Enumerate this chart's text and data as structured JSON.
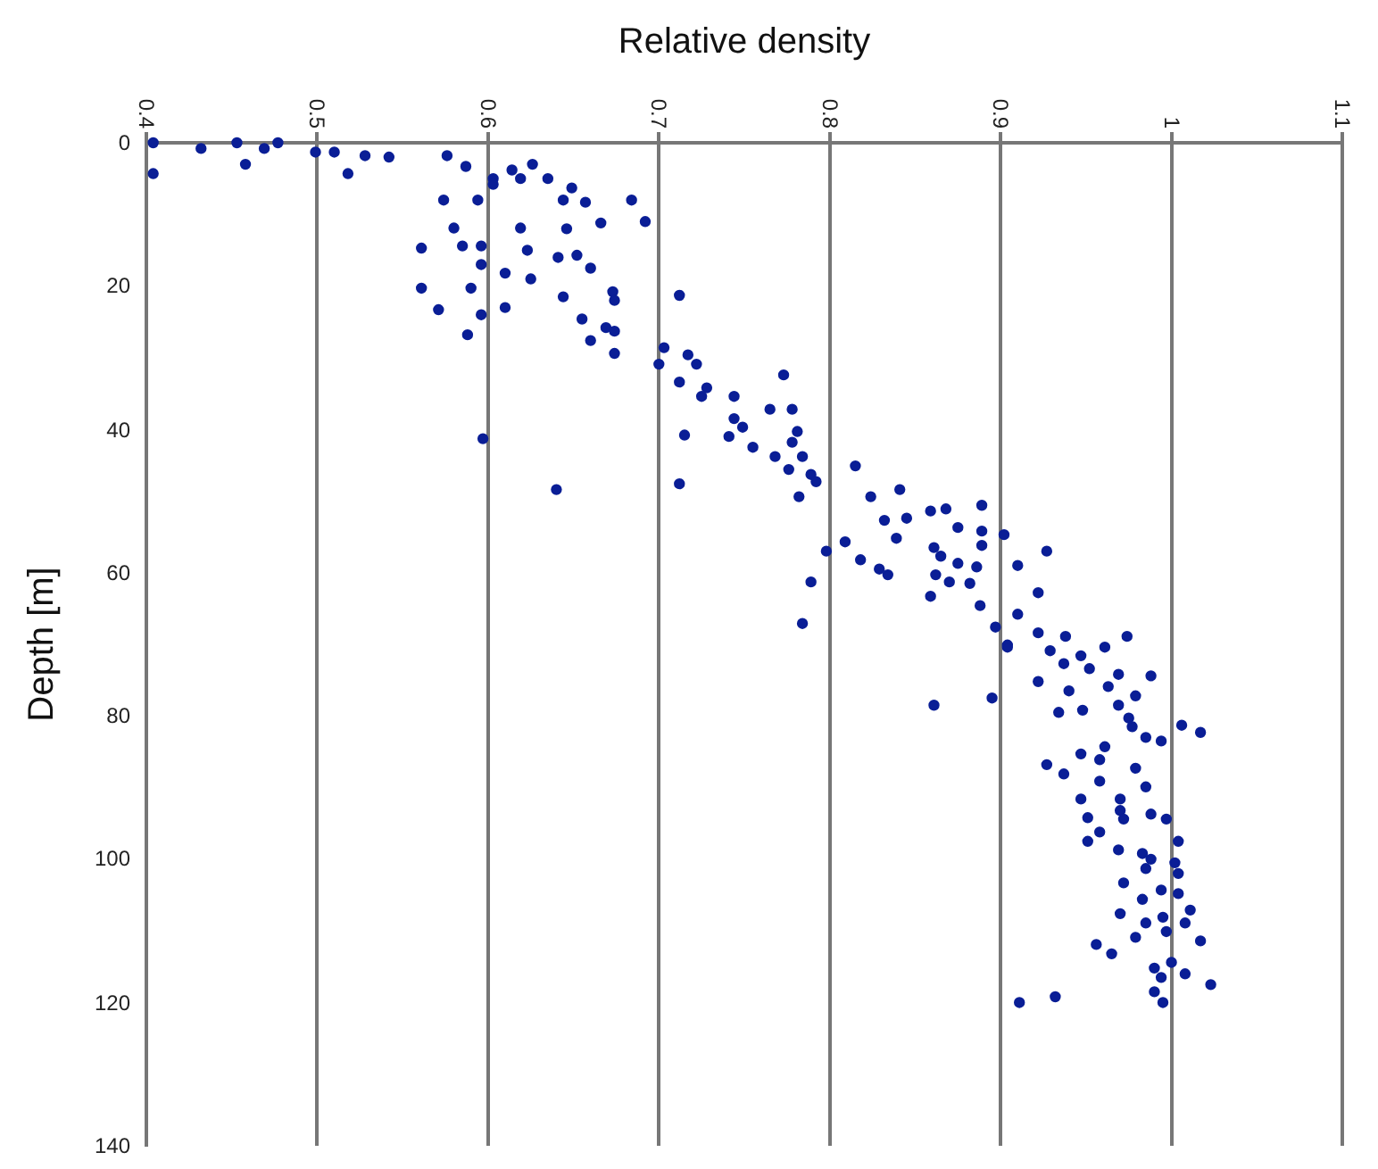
{
  "chart_data": {
    "type": "scatter",
    "xlabel": "Relative density",
    "ylabel": "Depth [m]",
    "xlim": [
      0.4,
      1.1
    ],
    "xticks": [
      0.4,
      0.5,
      0.6,
      0.7,
      0.8,
      0.9,
      1,
      1.1
    ],
    "ylim": [
      140,
      0
    ],
    "yticks": [
      0,
      20,
      40,
      60,
      80,
      100,
      120,
      140
    ],
    "grid": "x",
    "marker": "circle",
    "legend": false,
    "series": [
      {
        "color": "#0a1e96",
        "x": [
          0.404,
          0.432,
          0.453,
          0.469,
          0.477,
          0.458,
          0.404,
          0.499,
          0.51,
          0.528,
          0.542,
          0.518,
          0.576,
          0.587,
          0.603,
          0.614,
          0.626,
          0.635,
          0.603,
          0.619,
          0.649,
          0.644,
          0.657,
          0.684,
          0.692,
          0.666,
          0.646,
          0.619,
          0.594,
          0.574,
          0.58,
          0.585,
          0.596,
          0.623,
          0.641,
          0.652,
          0.561,
          0.596,
          0.61,
          0.625,
          0.66,
          0.561,
          0.59,
          0.644,
          0.673,
          0.674,
          0.712,
          0.571,
          0.596,
          0.61,
          0.655,
          0.588,
          0.66,
          0.669,
          0.674,
          0.674,
          0.597,
          0.64,
          0.703,
          0.717,
          0.722,
          0.7,
          0.712,
          0.728,
          0.725,
          0.744,
          0.773,
          0.765,
          0.778,
          0.744,
          0.749,
          0.741,
          0.781,
          0.778,
          0.755,
          0.768,
          0.784,
          0.776,
          0.789,
          0.792,
          0.782,
          0.715,
          0.712,
          0.815,
          0.824,
          0.841,
          0.832,
          0.845,
          0.859,
          0.868,
          0.889,
          0.875,
          0.889,
          0.902,
          0.839,
          0.798,
          0.809,
          0.861,
          0.889,
          0.927,
          0.91,
          0.818,
          0.829,
          0.834,
          0.865,
          0.875,
          0.886,
          0.862,
          0.87,
          0.882,
          0.789,
          0.859,
          0.888,
          0.922,
          0.784,
          0.897,
          0.91,
          0.904,
          0.922,
          0.938,
          0.929,
          0.947,
          0.922,
          0.904,
          0.961,
          0.974,
          0.952,
          0.937,
          0.969,
          0.988,
          0.94,
          0.963,
          0.979,
          0.969,
          0.948,
          0.934,
          0.861,
          0.895,
          0.975,
          0.977,
          0.985,
          0.994,
          1.006,
          1.017,
          0.947,
          0.961,
          0.958,
          0.927,
          0.937,
          0.958,
          0.979,
          0.985,
          0.97,
          0.947,
          0.97,
          0.972,
          0.951,
          0.988,
          0.997,
          0.958,
          0.951,
          0.969,
          0.983,
          0.988,
          1.004,
          1.002,
          1.004,
          0.985,
          0.972,
          0.994,
          0.983,
          1.004,
          1.011,
          0.995,
          0.985,
          1.008,
          0.97,
          0.979,
          0.997,
          1.017,
          0.956,
          0.965,
          0.99,
          1,
          1.008,
          0.994,
          1.023,
          0.99,
          0.995,
          0.932,
          0.911
        ],
        "values": [
          0,
          0.8,
          0,
          0.8,
          0,
          3,
          4.3,
          1.3,
          1.3,
          1.8,
          2,
          4.3,
          1.8,
          3.3,
          5,
          3.8,
          3,
          5,
          5.8,
          5,
          6.3,
          8,
          8.3,
          8,
          11,
          11.2,
          12,
          11.9,
          8,
          8,
          11.9,
          14.4,
          14.4,
          15,
          16,
          15.7,
          14.7,
          17,
          18.2,
          19,
          17.5,
          20.3,
          20.3,
          21.5,
          20.8,
          22,
          21.3,
          23.3,
          24,
          23,
          24.6,
          26.8,
          27.6,
          25.8,
          26.3,
          29.4,
          41.3,
          48.4,
          28.6,
          29.6,
          30.9,
          30.9,
          33.4,
          34.2,
          35.4,
          35.4,
          32.4,
          37.2,
          37.2,
          38.5,
          39.7,
          41,
          40.3,
          41.8,
          42.5,
          43.8,
          43.8,
          45.6,
          46.3,
          47.3,
          49.4,
          40.8,
          47.6,
          45.1,
          49.4,
          48.4,
          52.7,
          52.4,
          51.4,
          51.1,
          50.6,
          53.7,
          54.2,
          54.7,
          55.2,
          57,
          55.7,
          56.5,
          56.2,
          57,
          59,
          58.2,
          59.5,
          60.3,
          57.7,
          58.7,
          59.2,
          60.3,
          61.3,
          61.5,
          61.3,
          63.3,
          64.6,
          62.8,
          67.1,
          67.6,
          65.8,
          70.1,
          68.4,
          68.9,
          70.9,
          71.6,
          75.2,
          70.4,
          70.4,
          68.9,
          73.4,
          72.7,
          74.2,
          74.4,
          76.5,
          75.9,
          77.2,
          78.5,
          79.2,
          79.5,
          78.5,
          77.5,
          80.3,
          81.5,
          83,
          83.5,
          81.3,
          82.3,
          85.3,
          84.3,
          86.1,
          86.8,
          88.1,
          89.1,
          87.3,
          89.9,
          91.6,
          91.6,
          93.2,
          94.4,
          94.2,
          93.7,
          94.4,
          96.2,
          97.5,
          98.7,
          99.2,
          100,
          97.5,
          100.5,
          102,
          101.3,
          103.3,
          104.3,
          105.6,
          104.8,
          107.1,
          108.1,
          108.9,
          108.9,
          107.6,
          110.9,
          110.1,
          111.4,
          111.9,
          113.2,
          115.2,
          114.4,
          116,
          116.5,
          117.5,
          118.5,
          120,
          119.2,
          120
        ]
      }
    ]
  }
}
